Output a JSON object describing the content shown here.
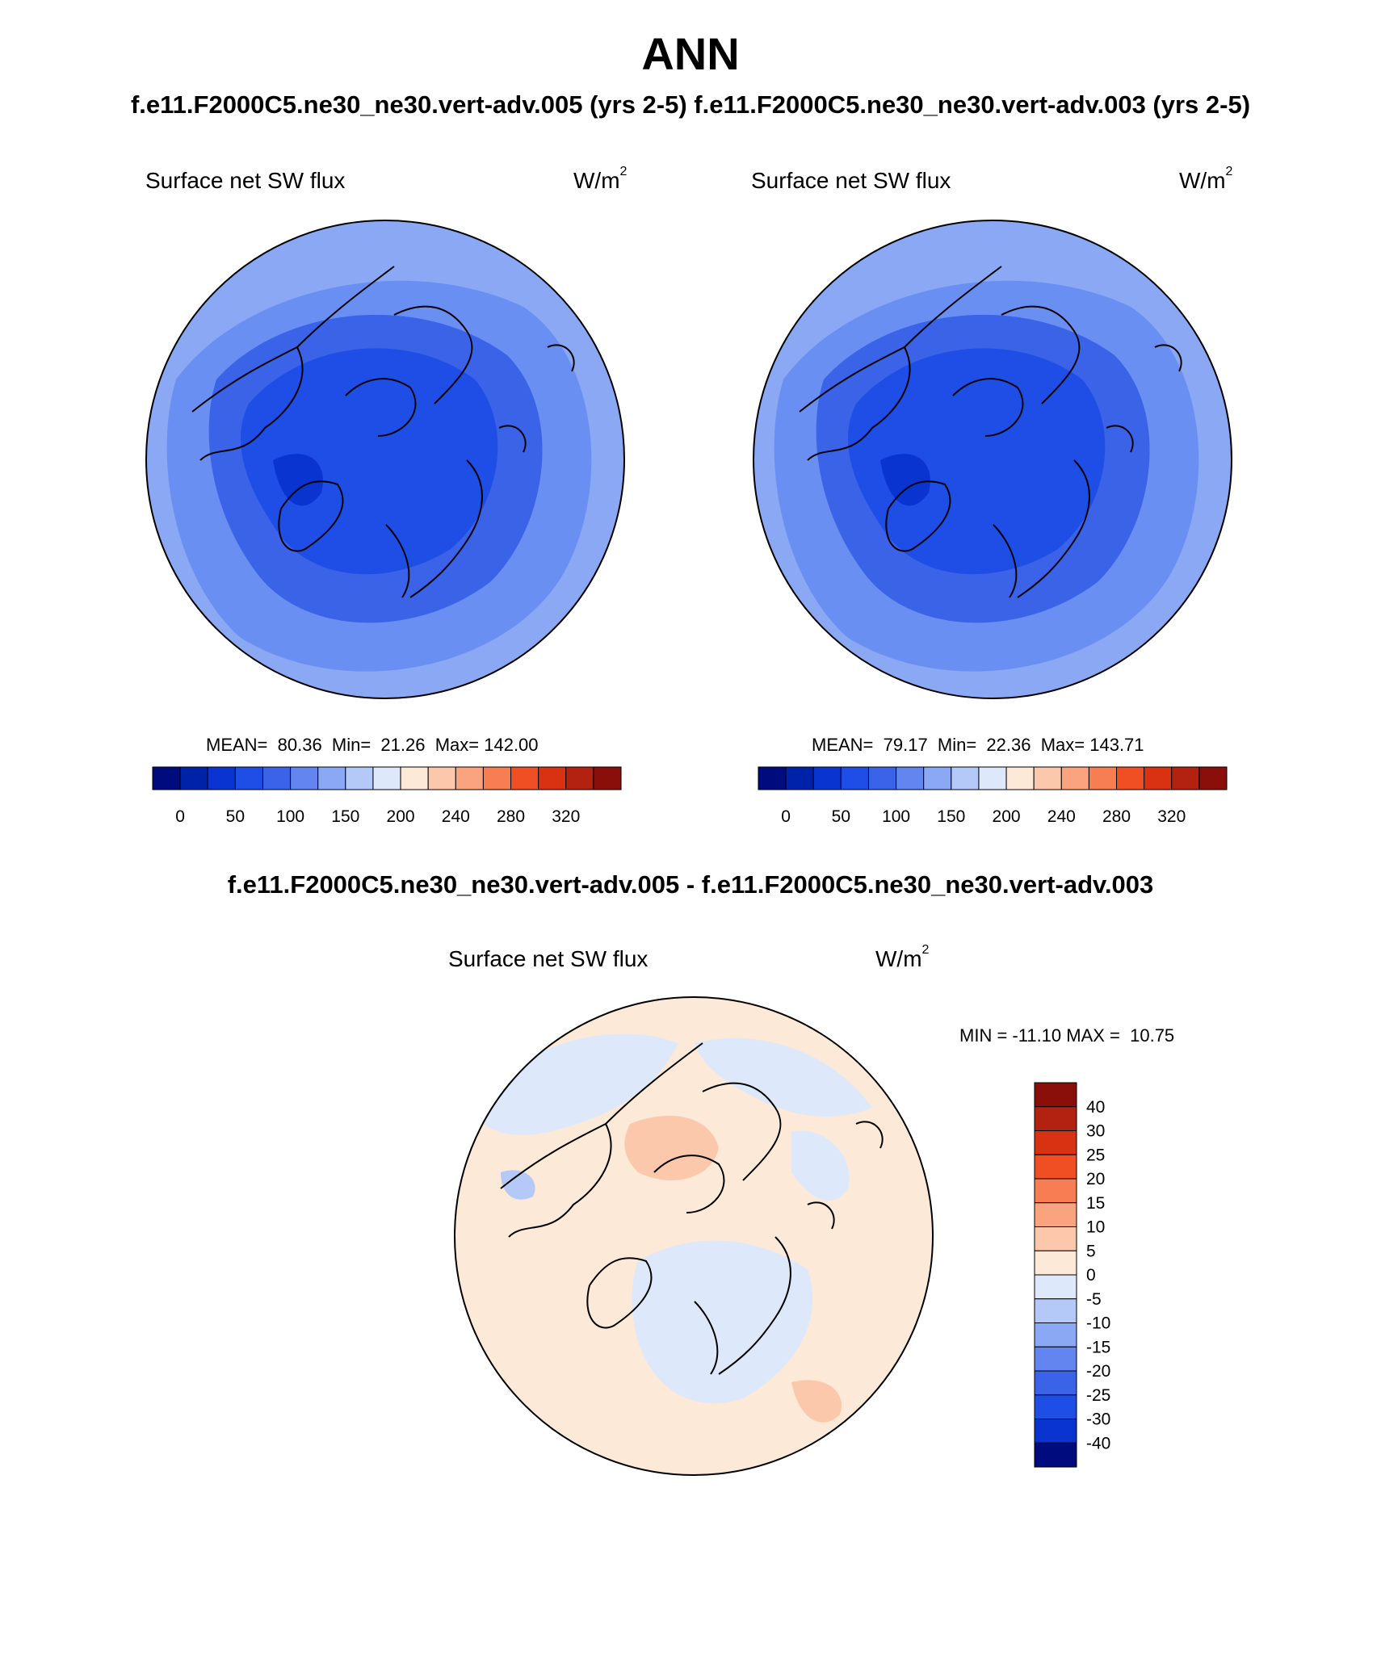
{
  "title": "ANN",
  "case_header": "f.e11.F2000C5.ne30_ne30.vert-adv.005 (yrs 2-5) f.e11.F2000C5.ne30_ne30.vert-adv.003 (yrs 2-5)",
  "diff_header": "f.e11.F2000C5.ne30_ne30.vert-adv.005 - f.e11.F2000C5.ne30_ne30.vert-adv.003",
  "panels": [
    {
      "variable": "Surface net SW flux",
      "units_base": "W/m",
      "units_exp": "2",
      "stats": "MEAN=  80.36  Min=  21.26  Max= 142.00"
    },
    {
      "variable": "Surface net SW flux",
      "units_base": "W/m",
      "units_exp": "2",
      "stats": "MEAN=  79.17  Min=  22.36  Max= 143.71"
    },
    {
      "variable": "Surface net SW flux",
      "units_base": "W/m",
      "units_exp": "2",
      "stats": "MIN = -11.10 MAX =  10.75"
    }
  ],
  "colorbar_main": {
    "colors": [
      "#000c7d",
      "#0022a8",
      "#0a34d0",
      "#1f4ee6",
      "#3b63e8",
      "#6285f0",
      "#8aa8f4",
      "#b4c9f8",
      "#dde8fb",
      "#fde9d8",
      "#fcc8ac",
      "#f9a47f",
      "#f77d52",
      "#f04e23",
      "#d83212",
      "#b32210",
      "#8a0e0a"
    ],
    "labels": [
      "0",
      "50",
      "100",
      "150",
      "200",
      "240",
      "280",
      "320"
    ]
  },
  "colorbar_diff": {
    "colors": [
      "#8a0e0a",
      "#b32210",
      "#d83212",
      "#f04e23",
      "#f77d52",
      "#f9a47f",
      "#fcc8ac",
      "#fde9d8",
      "#dde8fb",
      "#b4c9f8",
      "#8aa8f4",
      "#6285f0",
      "#3b63e8",
      "#1f4ee6",
      "#0a34d0",
      "#000c7d"
    ],
    "labels": [
      "40",
      "30",
      "25",
      "20",
      "15",
      "10",
      "5",
      "0",
      "-5",
      "-10",
      "-15",
      "-20",
      "-25",
      "-30",
      "-40"
    ]
  },
  "map_fill": {
    "panel_base": "#6a8ff2",
    "panel_mid": "#3b63e8",
    "panel_inner": "#1f4ee6",
    "panel_core": "#0a34d0",
    "panel_outer": "#8aa8f4",
    "diff_warm": "#fde9d8",
    "diff_warm2": "#fcc8ac",
    "diff_cool": "#dde8fb",
    "diff_cool2": "#b4c9f8"
  }
}
